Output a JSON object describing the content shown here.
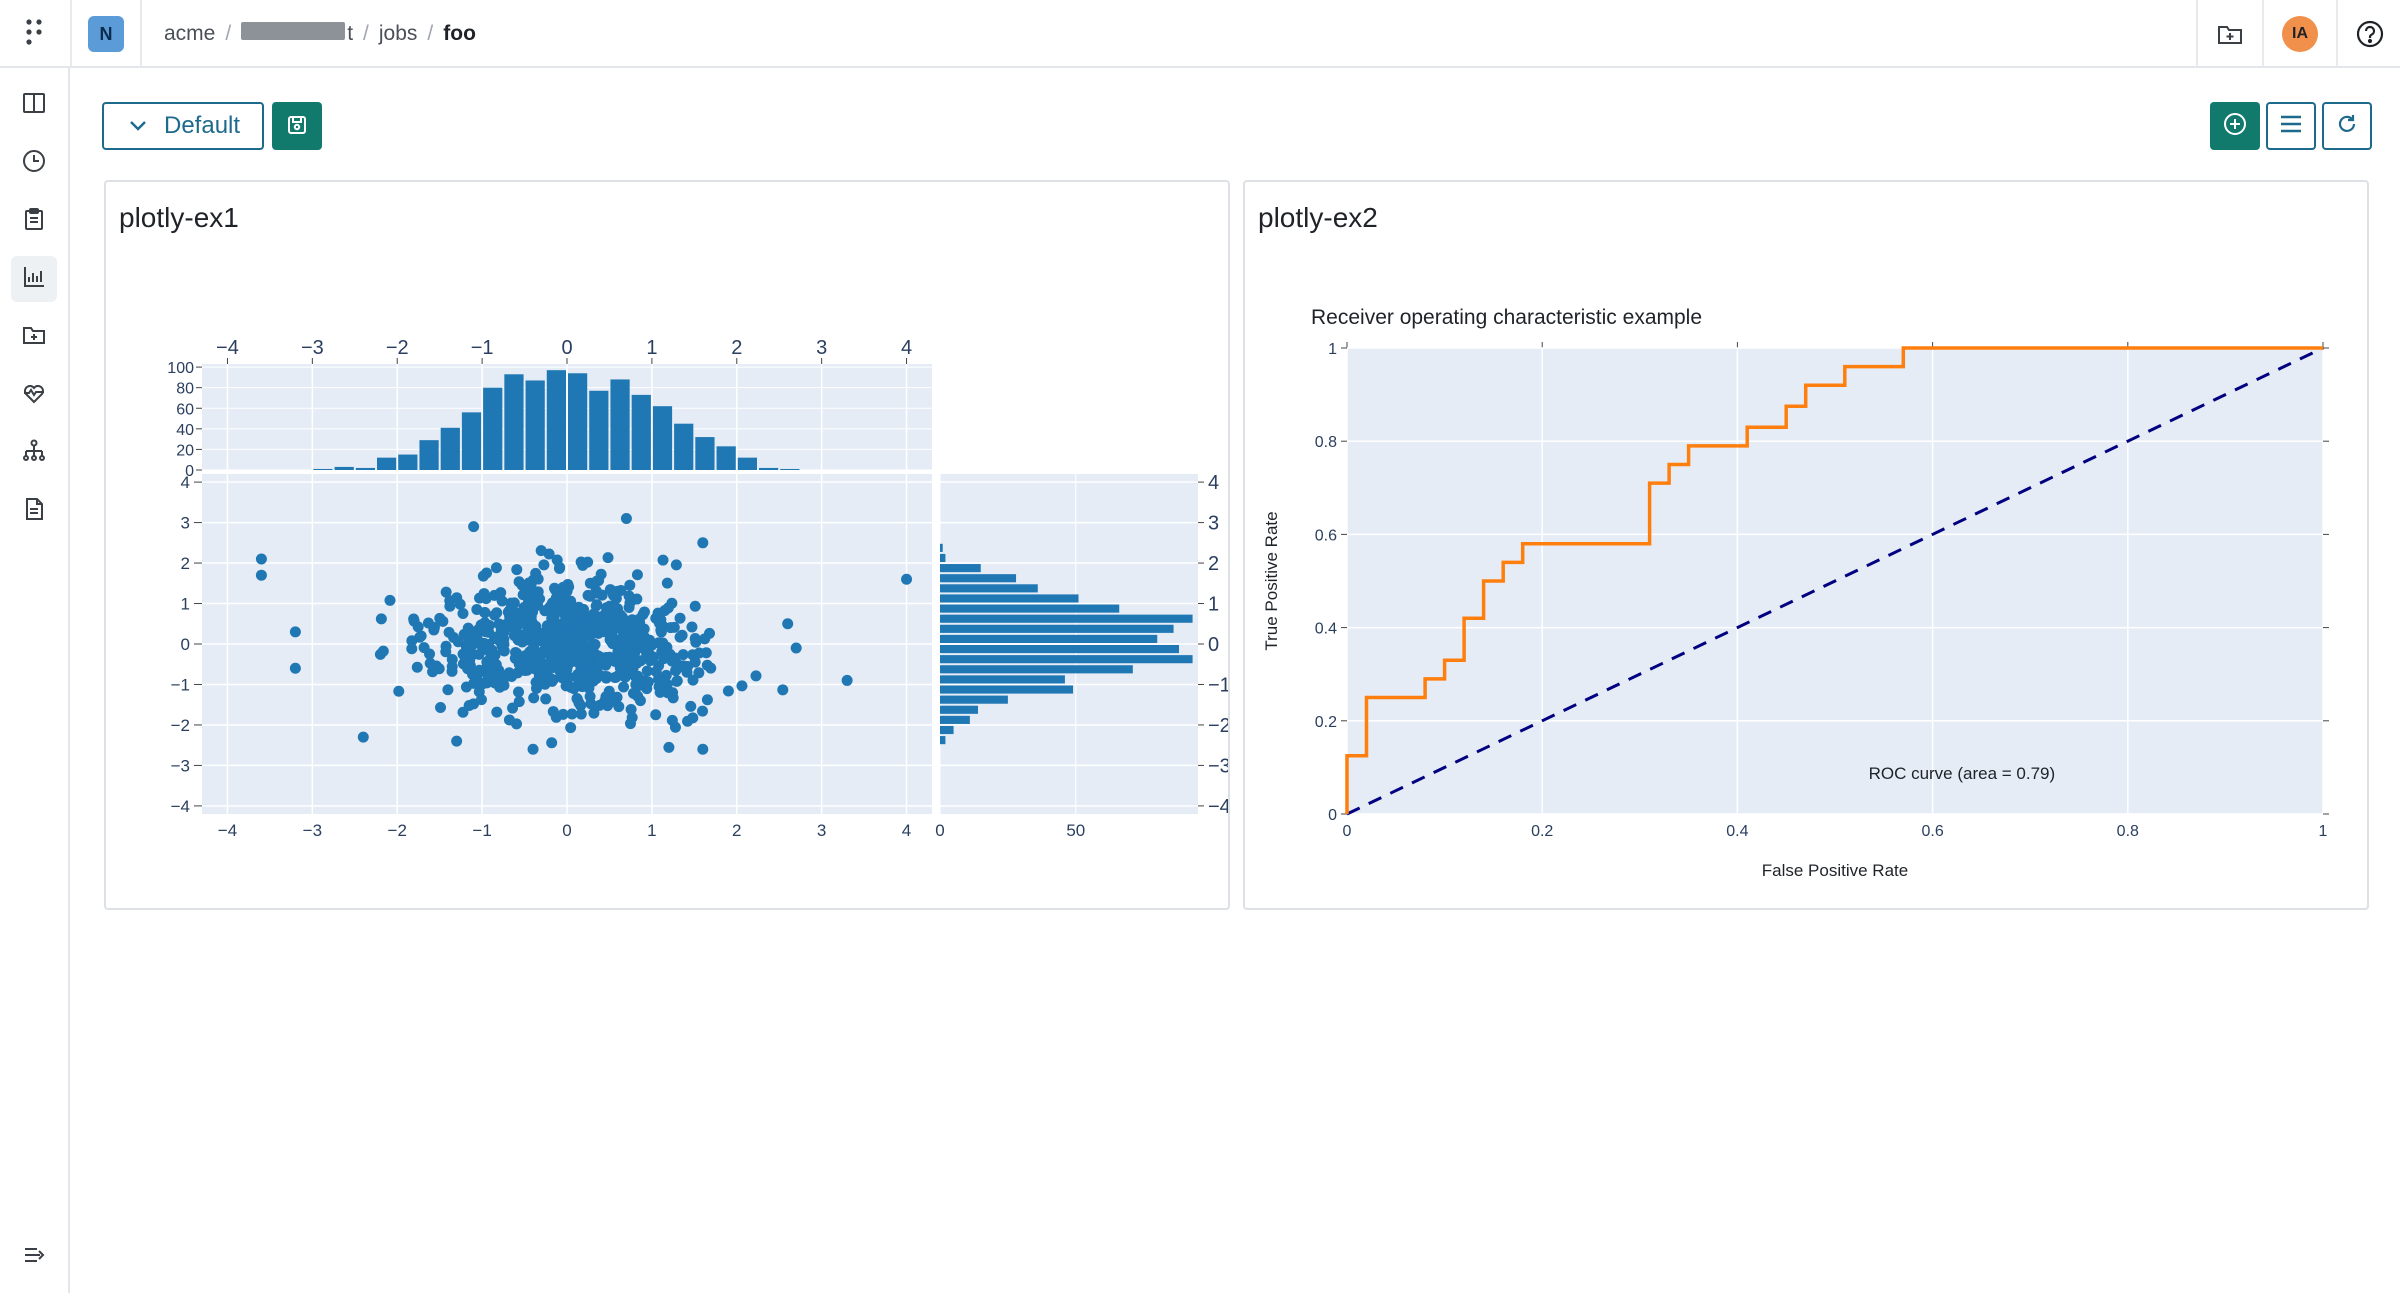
{
  "header": {
    "org_initial": "N",
    "breadcrumb": {
      "org": "acme",
      "project_suffix": "t",
      "section": "jobs",
      "current": "foo"
    },
    "user_initials": "IA"
  },
  "toolbar": {
    "view_select_label": "Default"
  },
  "panels": [
    {
      "title": "plotly-ex1"
    },
    {
      "title": "plotly-ex2"
    }
  ],
  "colors": {
    "accent": "#127a6d",
    "primary_outline": "#1e6a8d",
    "plot_bg": "#e5ecf6",
    "marker": "#1f77b4",
    "roc_line": "#ff7f0e",
    "diagonal": "#000080"
  },
  "chart_data": [
    {
      "type": "scatter",
      "subtype": "scatter-with-marginal-histograms",
      "x_ticks": [
        "−4",
        "−3",
        "−2",
        "−1",
        "0",
        "1",
        "2",
        "3",
        "4"
      ],
      "y_ticks": [
        "−4",
        "−3",
        "−2",
        "−1",
        "0",
        "1",
        "2",
        "3",
        "4"
      ],
      "xlim": [
        -4.3,
        4.3
      ],
      "ylim": [
        -4.2,
        4.2
      ],
      "scatter_outliers": [
        {
          "x": -3.6,
          "y": 2.1
        },
        {
          "x": -3.6,
          "y": 1.7
        },
        {
          "x": -3.2,
          "y": 0.3
        },
        {
          "x": -3.2,
          "y": -0.6
        },
        {
          "x": 4.0,
          "y": 1.6
        },
        {
          "x": 3.3,
          "y": -0.9
        },
        {
          "x": 0.7,
          "y": 3.1
        },
        {
          "x": -1.1,
          "y": 2.9
        },
        {
          "x": 1.6,
          "y": 2.5
        },
        {
          "x": -2.4,
          "y": -2.3
        },
        {
          "x": -1.3,
          "y": -2.4
        },
        {
          "x": 1.6,
          "y": -2.6
        },
        {
          "x": -0.4,
          "y": -2.6
        },
        {
          "x": 2.7,
          "y": -0.1
        },
        {
          "x": 2.6,
          "y": 0.5
        }
      ],
      "x_histogram": {
        "bin_width": 0.25,
        "bins": [
          {
            "x": -2.875,
            "count": 1
          },
          {
            "x": -2.625,
            "count": 3
          },
          {
            "x": -2.375,
            "count": 2
          },
          {
            "x": -2.125,
            "count": 12
          },
          {
            "x": -1.875,
            "count": 15
          },
          {
            "x": -1.625,
            "count": 29
          },
          {
            "x": -1.375,
            "count": 41
          },
          {
            "x": -1.125,
            "count": 56
          },
          {
            "x": -0.875,
            "count": 80
          },
          {
            "x": -0.625,
            "count": 93
          },
          {
            "x": -0.375,
            "count": 87
          },
          {
            "x": -0.125,
            "count": 97
          },
          {
            "x": 0.125,
            "count": 94
          },
          {
            "x": 0.375,
            "count": 77
          },
          {
            "x": 0.625,
            "count": 88
          },
          {
            "x": 0.875,
            "count": 73
          },
          {
            "x": 1.125,
            "count": 62
          },
          {
            "x": 1.375,
            "count": 45
          },
          {
            "x": 1.625,
            "count": 32
          },
          {
            "x": 1.875,
            "count": 23
          },
          {
            "x": 2.125,
            "count": 12
          },
          {
            "x": 2.375,
            "count": 2
          },
          {
            "x": 2.625,
            "count": 1
          }
        ],
        "y_ticks": [
          "0",
          "20",
          "40",
          "60",
          "80",
          "100"
        ],
        "ylim": [
          0,
          103
        ]
      },
      "y_histogram": {
        "bin_width": 0.25,
        "bins": [
          {
            "y": 2.375,
            "count": 1
          },
          {
            "y": 2.125,
            "count": 2
          },
          {
            "y": 1.875,
            "count": 15
          },
          {
            "y": 1.625,
            "count": 28
          },
          {
            "y": 1.375,
            "count": 36
          },
          {
            "y": 1.125,
            "count": 51
          },
          {
            "y": 0.875,
            "count": 66
          },
          {
            "y": 0.625,
            "count": 93
          },
          {
            "y": 0.375,
            "count": 86
          },
          {
            "y": 0.125,
            "count": 80
          },
          {
            "y": -0.125,
            "count": 88
          },
          {
            "y": -0.375,
            "count": 93
          },
          {
            "y": -0.625,
            "count": 71
          },
          {
            "y": -0.875,
            "count": 46
          },
          {
            "y": -1.125,
            "count": 49
          },
          {
            "y": -1.375,
            "count": 25
          },
          {
            "y": -1.625,
            "count": 14
          },
          {
            "y": -1.875,
            "count": 11
          },
          {
            "y": -2.125,
            "count": 5
          },
          {
            "y": -2.375,
            "count": 2
          }
        ],
        "x_ticks": [
          "0",
          "50"
        ],
        "xlim": [
          0,
          95
        ]
      }
    },
    {
      "type": "line",
      "title": "Receiver operating characteristic example",
      "xlabel": "False Positive Rate",
      "ylabel": "True Positive Rate",
      "xlim": [
        0,
        1
      ],
      "ylim": [
        0,
        1
      ],
      "x_ticks": [
        "0",
        "0.2",
        "0.4",
        "0.6",
        "0.8",
        "1"
      ],
      "y_ticks": [
        "0",
        "0.2",
        "0.4",
        "0.6",
        "0.8",
        "1"
      ],
      "annotation": "ROC curve (area = 0.79)",
      "series": [
        {
          "x": [
            0,
            0,
            0.02,
            0.02,
            0.08,
            0.08,
            0.1,
            0.1,
            0.12,
            0.12,
            0.14,
            0.14,
            0.16,
            0.16,
            0.18,
            0.18,
            0.31,
            0.31,
            0.33,
            0.33,
            0.35,
            0.35,
            0.41,
            0.41,
            0.45,
            0.45,
            0.47,
            0.47,
            0.51,
            0.51,
            0.57,
            0.57,
            1.0
          ],
          "y": [
            0,
            0.125,
            0.125,
            0.25,
            0.25,
            0.29,
            0.29,
            0.33,
            0.33,
            0.42,
            0.42,
            0.5,
            0.5,
            0.54,
            0.54,
            0.58,
            0.58,
            0.71,
            0.71,
            0.75,
            0.75,
            0.79,
            0.79,
            0.83,
            0.83,
            0.875,
            0.875,
            0.92,
            0.92,
            0.96,
            0.96,
            1.0,
            1.0
          ]
        },
        {
          "x": [
            0,
            1
          ],
          "y": [
            0,
            1
          ],
          "style": "dashed"
        }
      ]
    }
  ]
}
